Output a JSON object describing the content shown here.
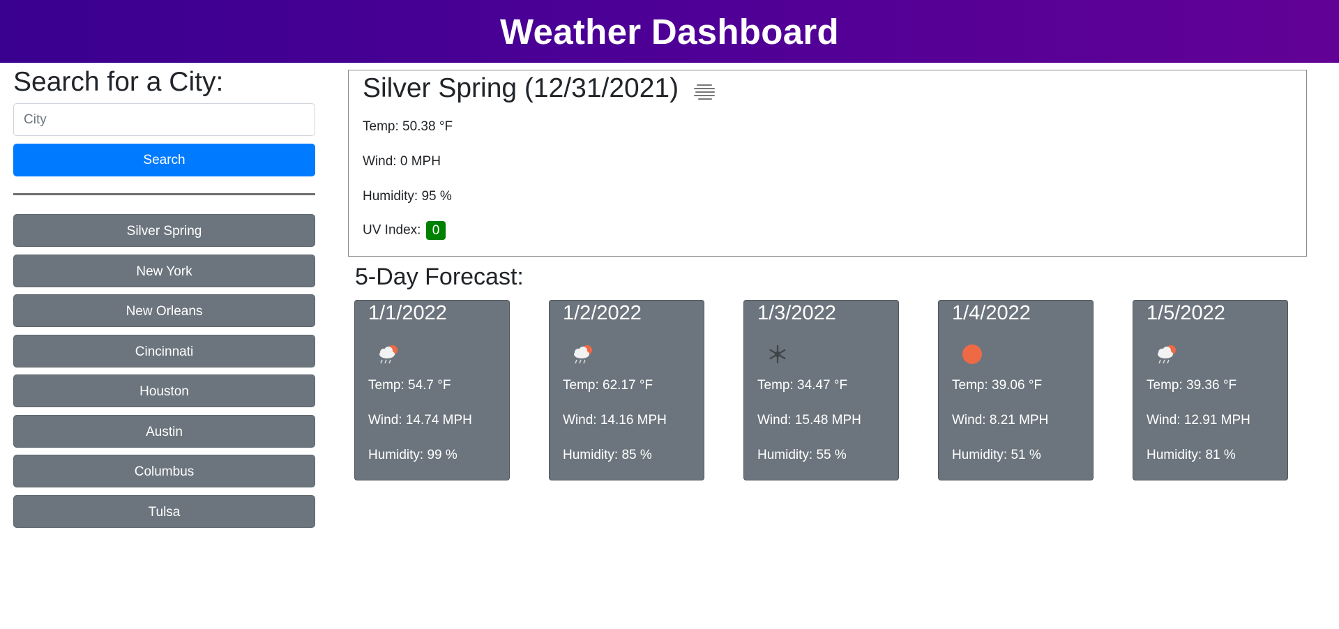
{
  "header": {
    "title": "Weather Dashboard"
  },
  "search": {
    "heading": "Search for a City:",
    "placeholder": "City",
    "value": "",
    "button_label": "Search"
  },
  "history": [
    {
      "label": "Silver Spring"
    },
    {
      "label": "New York"
    },
    {
      "label": "New Orleans"
    },
    {
      "label": "Cincinnati"
    },
    {
      "label": "Houston"
    },
    {
      "label": "Austin"
    },
    {
      "label": "Columbus"
    },
    {
      "label": "Tulsa"
    }
  ],
  "current": {
    "title": "Silver Spring (12/31/2021)",
    "icon": "mist-icon",
    "temp": "Temp: 50.38 °F",
    "wind": "Wind: 0 MPH",
    "humidity": "Humidity: 95 %",
    "uv_label": "UV Index:",
    "uv_value": "0",
    "uv_color": "#008000"
  },
  "forecast": {
    "heading": "5-Day Forecast:",
    "days": [
      {
        "date": "1/1/2022",
        "icon": "rain-sun-icon",
        "temp": "Temp: 54.7 °F",
        "wind": "Wind: 14.74 MPH",
        "humidity": "Humidity: 99 %"
      },
      {
        "date": "1/2/2022",
        "icon": "rain-sun-icon",
        "temp": "Temp: 62.17 °F",
        "wind": "Wind: 14.16 MPH",
        "humidity": "Humidity: 85 %"
      },
      {
        "date": "1/3/2022",
        "icon": "snow-icon",
        "temp": "Temp: 34.47 °F",
        "wind": "Wind: 15.48 MPH",
        "humidity": "Humidity: 55 %"
      },
      {
        "date": "1/4/2022",
        "icon": "sun-icon",
        "temp": "Temp: 39.06 °F",
        "wind": "Wind: 8.21 MPH",
        "humidity": "Humidity: 51 %"
      },
      {
        "date": "1/5/2022",
        "icon": "rain-sun-icon",
        "temp": "Temp: 39.36 °F",
        "wind": "Wind: 12.91 MPH",
        "humidity": "Humidity: 81 %"
      }
    ]
  },
  "colors": {
    "header_start": "#3a008f",
    "header_end": "#620196",
    "primary": "#007bff",
    "secondary": "#6c757d",
    "sun": "#ee6a45"
  }
}
